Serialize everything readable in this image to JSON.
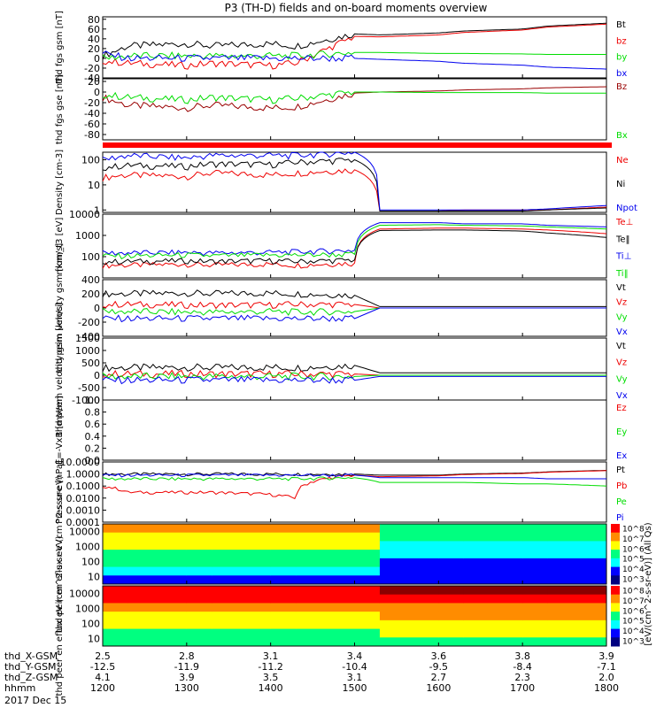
{
  "title": "P3 (TH-D) fields and on-board moments overview",
  "date_label": "2017 Dec 15",
  "colors": {
    "black": "#000000",
    "red": "#ee0000",
    "green": "#00dd00",
    "blue": "#0000ee",
    "darkred": "#990000",
    "bar": "#ff0000"
  },
  "orbit": {
    "rows": [
      {
        "label": "thd_X-GSM",
        "values": [
          "2.5",
          "2.8",
          "3.1",
          "3.4",
          "3.6",
          "3.8",
          "3.9"
        ]
      },
      {
        "label": "thd_Y-GSM",
        "values": [
          "-12.5",
          "-11.9",
          "-11.2",
          "-10.4",
          "-9.5",
          "-8.4",
          "-7.1"
        ]
      },
      {
        "label": "thd_Z-GSM",
        "values": [
          "4.1",
          "3.9",
          "3.5",
          "3.1",
          "2.7",
          "2.3",
          "2.0"
        ]
      },
      {
        "label": "hhmm",
        "values": [
          "1200",
          "1300",
          "1400",
          "1500",
          "1600",
          "1700",
          "1800"
        ]
      }
    ]
  },
  "spectrogram_colorbar": {
    "title": "[eV/(cm^2-s-sr-eV)] (All Qs)",
    "ticks": [
      "10^3",
      "10^4",
      "10^5",
      "10^6",
      "10^7",
      "10^8"
    ]
  },
  "chart_data": [
    {
      "id": "fgs_gsm",
      "type": "line",
      "ylabel": "thd fgs gsm [nT]",
      "ylim": [
        -40,
        85
      ],
      "yticks": [
        "-40",
        "-20",
        "0",
        "20",
        "40",
        "60",
        "80"
      ],
      "x": [
        1200,
        1230,
        1300,
        1330,
        1400,
        1430,
        1500,
        1530,
        1600,
        1630,
        1700,
        1730,
        1800
      ],
      "series": [
        {
          "name": "Bt",
          "color": "black",
          "values": [
            5,
            25,
            30,
            25,
            30,
            25,
            50,
            48,
            52,
            56,
            60,
            66,
            72
          ]
        },
        {
          "name": "bz",
          "color": "red",
          "values": [
            -5,
            -10,
            -15,
            -10,
            -15,
            -10,
            45,
            44,
            48,
            53,
            58,
            64,
            70
          ]
        },
        {
          "name": "by",
          "color": "green",
          "values": [
            0,
            5,
            5,
            5,
            5,
            5,
            12,
            12,
            10,
            10,
            9,
            8,
            8
          ]
        },
        {
          "name": "bx",
          "color": "blue",
          "values": [
            10,
            0,
            0,
            0,
            0,
            0,
            0,
            -2,
            -6,
            -10,
            -14,
            -18,
            -22
          ]
        }
      ]
    },
    {
      "id": "fgs_gse",
      "type": "line",
      "ylabel": "thd fgs gse [nT]",
      "ylim": [
        -90,
        25
      ],
      "yticks": [
        "-80",
        "-60",
        "-40",
        "-20",
        "0",
        "20"
      ],
      "x": [
        1200,
        1230,
        1300,
        1330,
        1400,
        1430,
        1500,
        1530,
        1600,
        1630,
        1700,
        1730,
        1800
      ],
      "series": [
        {
          "name": "Bz",
          "color": "darkred",
          "values": [
            -10,
            -25,
            -30,
            -25,
            -30,
            -28,
            -2,
            0,
            2,
            4,
            6,
            8,
            10
          ]
        },
        {
          "name": "Bx",
          "color": "green",
          "values": [
            -5,
            -10,
            -15,
            -10,
            -15,
            -12,
            0,
            0,
            -1,
            -1,
            -1,
            -2,
            -2
          ]
        }
      ]
    },
    {
      "id": "density",
      "type": "line",
      "log_scale": true,
      "ylabel": "Density [cm-3]",
      "ylim": [
        0.8,
        200
      ],
      "yticks": [
        "1",
        "10",
        "100"
      ],
      "x": [
        1200,
        1230,
        1300,
        1330,
        1400,
        1430,
        1500,
        1530,
        1600,
        1630,
        1700,
        1730,
        1800
      ],
      "series": [
        {
          "name": "Ne",
          "color": "red",
          "values": [
            20,
            25,
            22,
            30,
            25,
            30,
            40,
            0.9,
            0.9,
            1.0,
            1.0,
            1.0,
            1.3
          ]
        },
        {
          "name": "Ni",
          "color": "black",
          "values": [
            50,
            60,
            55,
            70,
            65,
            80,
            100,
            0.9,
            0.9,
            0.9,
            0.9,
            1.0,
            1.2
          ]
        },
        {
          "name": "Npot",
          "color": "blue",
          "values": [
            100,
            150,
            120,
            150,
            150,
            150,
            200,
            1.0,
            1.0,
            1.0,
            1.0,
            1.1,
            1.5
          ]
        }
      ]
    },
    {
      "id": "temperature",
      "type": "line",
      "log_scale": true,
      "ylabel": "mom_t3 [eV]",
      "ylim": [
        10,
        10000
      ],
      "yticks": [
        "100",
        "1000",
        "10000"
      ],
      "x": [
        1200,
        1230,
        1300,
        1330,
        1400,
        1430,
        1500,
        1530,
        1600,
        1630,
        1700,
        1730,
        1800
      ],
      "series": [
        {
          "name": "Te⊥",
          "color": "red",
          "values": [
            40,
            40,
            45,
            40,
            45,
            40,
            50,
            2000,
            2200,
            2200,
            2000,
            1800,
            1200
          ]
        },
        {
          "name": "Te‖",
          "color": "black",
          "values": [
            60,
            60,
            65,
            60,
            65,
            60,
            70,
            1700,
            1800,
            1800,
            1600,
            1300,
            800
          ]
        },
        {
          "name": "Ti⊥",
          "color": "blue",
          "values": [
            150,
            150,
            160,
            150,
            160,
            170,
            200,
            4000,
            4000,
            3500,
            3500,
            3000,
            2500
          ]
        },
        {
          "name": "Ti‖",
          "color": "green",
          "values": [
            110,
            110,
            120,
            110,
            120,
            120,
            130,
            3000,
            3200,
            3000,
            2800,
            2500,
            2000
          ]
        }
      ]
    },
    {
      "id": "ion_velocity",
      "type": "line",
      "ylabel": "thd peim velocity gsm [km/s]",
      "ylim": [
        -400,
        400
      ],
      "yticks": [
        "-400",
        "-200",
        "0",
        "200",
        "400"
      ],
      "x": [
        1200,
        1230,
        1300,
        1330,
        1400,
        1430,
        1500,
        1530,
        1600,
        1630,
        1700,
        1730,
        1800
      ],
      "series": [
        {
          "name": "Vt",
          "color": "black",
          "values": [
            200,
            200,
            210,
            200,
            210,
            200,
            180,
            20,
            20,
            20,
            20,
            20,
            20
          ]
        },
        {
          "name": "Vz",
          "color": "red",
          "values": [
            50,
            50,
            40,
            40,
            40,
            50,
            50,
            0,
            0,
            0,
            0,
            0,
            0
          ]
        },
        {
          "name": "Vy",
          "color": "green",
          "values": [
            -50,
            -50,
            -60,
            -60,
            -50,
            -60,
            -50,
            0,
            0,
            0,
            0,
            0,
            0
          ]
        },
        {
          "name": "Vx",
          "color": "blue",
          "values": [
            -150,
            -150,
            -150,
            -150,
            -150,
            -150,
            -150,
            0,
            0,
            0,
            0,
            0,
            0
          ]
        }
      ]
    },
    {
      "id": "electron_velocity",
      "type": "line",
      "ylabel": "thd peem velocity gsm [km/s]",
      "ylim": [
        -1000,
        1500
      ],
      "yticks": [
        "-1000",
        "-500",
        "0",
        "500",
        "1000",
        "1500"
      ],
      "x": [
        1200,
        1230,
        1300,
        1330,
        1400,
        1430,
        1500,
        1530,
        1600,
        1630,
        1700,
        1730,
        1800
      ],
      "series": [
        {
          "name": "Vt",
          "color": "black",
          "values": [
            300,
            300,
            320,
            300,
            320,
            300,
            400,
            100,
            100,
            100,
            100,
            100,
            100
          ]
        },
        {
          "name": "Vz",
          "color": "red",
          "values": [
            50,
            50,
            50,
            50,
            50,
            50,
            50,
            0,
            0,
            0,
            0,
            0,
            0
          ]
        },
        {
          "name": "Vy",
          "color": "green",
          "values": [
            -50,
            -50,
            -50,
            -50,
            -50,
            -50,
            -50,
            0,
            0,
            0,
            0,
            0,
            0
          ]
        },
        {
          "name": "Vx",
          "color": "blue",
          "values": [
            -200,
            -200,
            -200,
            -200,
            -200,
            -200,
            -200,
            -50,
            -50,
            -50,
            -50,
            -50,
            -50
          ]
        }
      ]
    },
    {
      "id": "efield",
      "type": "line",
      "ylabel": "E=-VxB [mV/m]",
      "ylim": [
        0,
        1
      ],
      "yticks": [
        "0.0",
        "0.2",
        "0.4",
        "0.6",
        "0.8",
        "1.0"
      ],
      "series": [
        {
          "name": "Ez",
          "color": "red",
          "values": []
        },
        {
          "name": "Ey",
          "color": "green",
          "values": []
        },
        {
          "name": "Ex",
          "color": "blue",
          "values": []
        }
      ]
    },
    {
      "id": "pressure",
      "type": "line",
      "log_scale": true,
      "ylabel": "Pressure [nPa]",
      "ylim": [
        0.0001,
        10
      ],
      "yticks": [
        "0.0001",
        "0.0010",
        "0.0100",
        "0.1000",
        "1.0000",
        "10.0000"
      ],
      "x": [
        1200,
        1230,
        1300,
        1330,
        1400,
        1430,
        1500,
        1530,
        1600,
        1630,
        1700,
        1730,
        1800
      ],
      "series": [
        {
          "name": "Pt",
          "color": "black",
          "values": [
            1.0,
            1.0,
            1.0,
            1.0,
            1.0,
            1.0,
            1.0,
            0.8,
            0.8,
            1.0,
            1.2,
            1.5,
            2.0
          ]
        },
        {
          "name": "Pb",
          "color": "red",
          "values": [
            0.1,
            0.03,
            0.03,
            0.03,
            0.02,
            0.01,
            0.8,
            0.6,
            0.7,
            0.9,
            1.1,
            1.4,
            1.9
          ]
        },
        {
          "name": "Pe",
          "color": "green",
          "values": [
            0.4,
            0.4,
            0.4,
            0.4,
            0.4,
            0.4,
            0.5,
            0.2,
            0.2,
            0.2,
            0.15,
            0.15,
            0.1
          ]
        },
        {
          "name": "Pi",
          "color": "blue",
          "values": [
            0.8,
            0.8,
            0.8,
            0.8,
            0.8,
            0.8,
            0.8,
            0.5,
            0.5,
            0.5,
            0.5,
            0.4,
            0.4
          ]
        }
      ]
    },
    {
      "id": "ion_spectrogram",
      "type": "heatmap",
      "ylabel": "thd peir en eflux eV (cm^2-s-sr-eV)",
      "yticks": [
        "10",
        "100",
        "1000",
        "10000"
      ],
      "x": [
        1200,
        1230,
        1300,
        1330,
        1400,
        1430,
        1500,
        1530,
        1600,
        1630,
        1700,
        1730,
        1800
      ],
      "levels": [
        6.0,
        6.0,
        6.0,
        6.0,
        6.0,
        6.0,
        6.0,
        4.5,
        4.5,
        4.4,
        4.4,
        4.4,
        4.3
      ]
    },
    {
      "id": "electron_spectrogram",
      "type": "heatmap",
      "ylabel": "thd peer en eflux eV (cm^2-s-sr-eV)",
      "yticks": [
        "10",
        "100",
        "1000",
        "10000"
      ],
      "x": [
        1200,
        1230,
        1300,
        1330,
        1400,
        1430,
        1500,
        1530,
        1600,
        1630,
        1700,
        1730,
        1800
      ],
      "levels": [
        7.2,
        7.2,
        7.2,
        7.2,
        7.2,
        7.2,
        7.2,
        7.6,
        7.6,
        7.6,
        7.6,
        7.6,
        7.4
      ]
    }
  ]
}
